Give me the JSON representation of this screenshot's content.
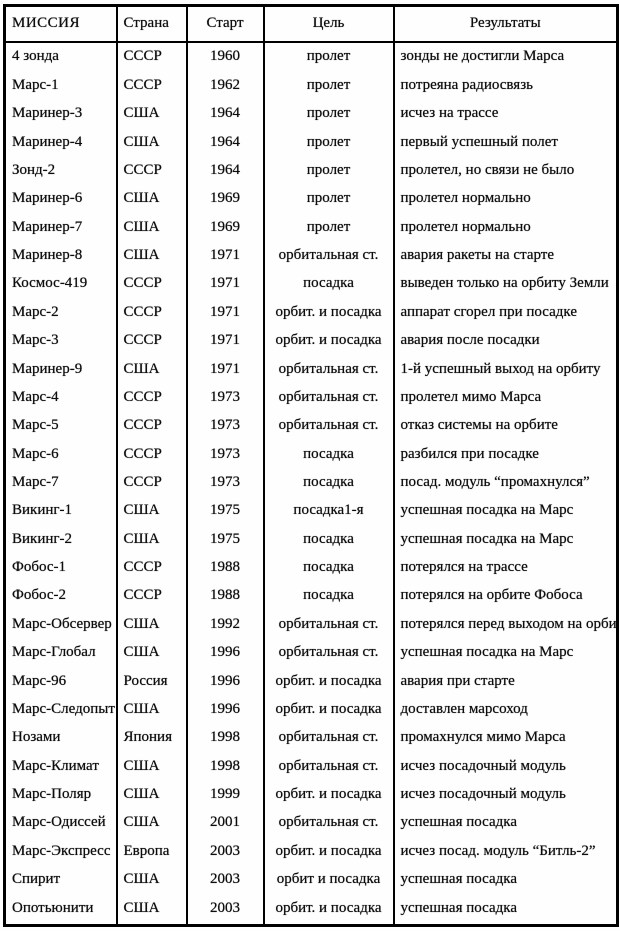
{
  "document": {
    "kind": "scanned-table",
    "language": "ru",
    "topic": "Mars exploration missions"
  },
  "colors": {
    "background": "#fefefe",
    "text": "#0d0d0d",
    "border": "#000000"
  },
  "table": {
    "headers": [
      "МИССИЯ",
      "Страна",
      "Старт",
      "Цель",
      "Результаты"
    ],
    "rows": [
      [
        "4 зонда",
        "СССР",
        "1960",
        "пролет",
        "зонды не достигли Марса"
      ],
      [
        "Марс-1",
        "СССР",
        "1962",
        "пролет",
        "потреяна радиосвязь"
      ],
      [
        "Маринер-3",
        "США",
        "1964",
        "пролет",
        "исчез на трассе"
      ],
      [
        "Маринер-4",
        "США",
        "1964",
        "пролет",
        "первый успешный полет"
      ],
      [
        "Зонд-2",
        "СССР",
        "1964",
        "пролет",
        "пролетел, но связи не было"
      ],
      [
        "Маринер-6",
        "США",
        "1969",
        "пролет",
        "пролетел нормально"
      ],
      [
        "Маринер-7",
        "США",
        "1969",
        "пролет",
        "пролетел нормально"
      ],
      [
        "Маринер-8",
        "США",
        "1971",
        "орбитальная ст.",
        "авария ракеты на старте"
      ],
      [
        "Космос-419",
        "СССР",
        "1971",
        "посадка",
        "выведен только на орбиту Земли"
      ],
      [
        "Марс-2",
        "СССР",
        "1971",
        "орбит. и посадка",
        "аппарат сгорел при посадке"
      ],
      [
        "Марс-3",
        "СССР",
        "1971",
        "орбит. и посадка",
        "авария после посадки"
      ],
      [
        "Маринер-9",
        "США",
        "1971",
        "орбитальная ст.",
        "1-й успешный выход на орбиту"
      ],
      [
        "Марс-4",
        "СССР",
        "1973",
        "орбитальная ст.",
        "пролетел мимо Марса"
      ],
      [
        "Марс-5",
        "СССР",
        "1973",
        "орбитальная ст.",
        "отказ системы на орбите"
      ],
      [
        "Марс-6",
        "СССР",
        "1973",
        "посадка",
        "разбился при посадке"
      ],
      [
        "Марс-7",
        "СССР",
        "1973",
        "посадка",
        "посад. модуль “промахнулся”"
      ],
      [
        "Викинг-1",
        "США",
        "1975",
        "посадка1-я",
        "успешная посадка на Марс"
      ],
      [
        "Викинг-2",
        "США",
        "1975",
        "посадка",
        "успешная посадка на Марс"
      ],
      [
        "Фобос-1",
        "СССР",
        "1988",
        "посадка",
        "потерялся на трассе"
      ],
      [
        "Фобос-2",
        "СССР",
        "1988",
        "посадка",
        "потерялся на орбите Фобоса"
      ],
      [
        "Марс-Обсервер",
        "США",
        "1992",
        "орбитальная ст.",
        "потерялся перед выходом на орбиту"
      ],
      [
        "Марс-Глобал",
        "США",
        "1996",
        "орбитальная ст.",
        "успешная посадка на Марс"
      ],
      [
        "Марс-96",
        "Россия",
        "1996",
        "орбит. и посадка",
        "авария при старте"
      ],
      [
        "Марс-Следопыт",
        "США",
        "1996",
        "орбит. и посадка",
        "доставлен марсоход"
      ],
      [
        "Нозами",
        "Япония",
        "1998",
        "орбитальная ст.",
        "промахнулся мимо Марса"
      ],
      [
        "Марс-Климат",
        "США",
        "1998",
        "орбитальная ст.",
        "исчез посадочный модуль"
      ],
      [
        "Марс-Поляр",
        "США",
        "1999",
        "орбит. и посадка",
        "исчез посадочный модуль"
      ],
      [
        "Марс-Одиссей",
        "США",
        "2001",
        "орбитальная ст.",
        "успешная посадка"
      ],
      [
        "Марс-Экспресс",
        "Европа",
        "2003",
        "орбит. и посадка",
        "исчез посад. модуль “Битль-2”"
      ],
      [
        "Спирит",
        "США",
        "2003",
        "орбит и посадка",
        "успешная посадка"
      ],
      [
        "Опотьюнити",
        "США",
        "2003",
        "орбит. и посадка",
        "успешная посадка"
      ]
    ]
  }
}
